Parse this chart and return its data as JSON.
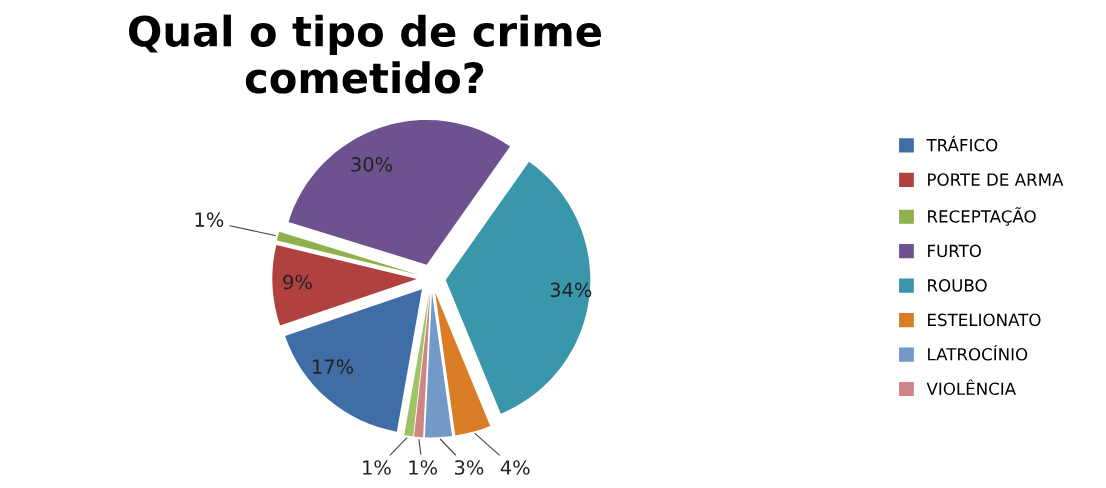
{
  "chart_data": {
    "type": "pie",
    "title": "Qual o tipo de crime\ncometido?",
    "categories": [
      "TRÁFICO",
      "PORTE DE ARMA",
      "RECEPTAÇÃO",
      "FURTO",
      "ROUBO",
      "ESTELIONATO",
      "LATROCÍNIO",
      "VIOLÊNCIA",
      null
    ],
    "values": [
      17,
      9,
      1,
      30,
      34,
      4,
      3,
      1,
      1
    ],
    "value_labels": [
      "17%",
      "9%",
      "1%",
      "30%",
      "34%",
      "4%",
      "3%",
      "1%",
      "1%"
    ],
    "colors": [
      "#3f6ea6",
      "#b0413e",
      "#8fb04c",
      "#6e5290",
      "#3996ab",
      "#d97e26",
      "#7299c8",
      "#cf8585",
      "#9fc264"
    ],
    "legend": "right"
  }
}
